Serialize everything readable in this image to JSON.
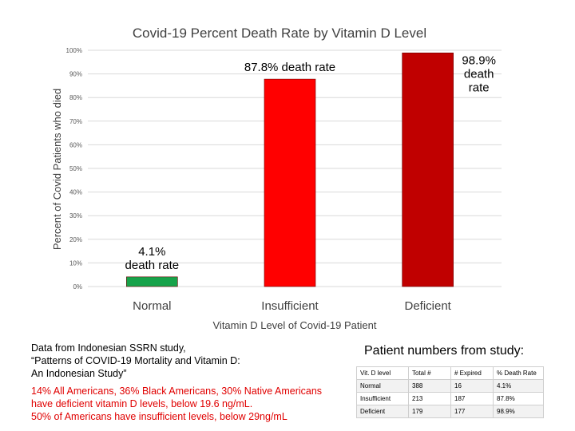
{
  "chart_data": {
    "type": "bar",
    "title": "Covid-19 Percent Death Rate by Vitamin D Level",
    "xlabel": "Vitamin D Level of Covid-19 Patient",
    "ylabel": "Percent of Covid Patients who died",
    "ylim": [
      0,
      100
    ],
    "yticks": [
      "0%",
      "10%",
      "20%",
      "30%",
      "40%",
      "50%",
      "60%",
      "70%",
      "80%",
      "90%",
      "100%"
    ],
    "grid": true,
    "categories": [
      "Normal",
      "Insufficient",
      "Deficient"
    ],
    "values": [
      4.1,
      87.8,
      98.9
    ],
    "colors": [
      "#17a34a",
      "#ff0000",
      "#c00000"
    ],
    "data_labels": [
      [
        "4.1%",
        "death rate"
      ],
      [
        "87.8% death rate"
      ],
      [
        "98.9%",
        "death",
        "rate"
      ]
    ]
  },
  "notes": {
    "line1": "Data from Indonesian SSRN study,",
    "line2": "“Patterns of COVID-19 Mortality and Vitamin D:",
    "line3": "An Indonesian Study”",
    "red1": "14% All Americans, 36% Black Americans, 30% Native Americans",
    "red2": "have deficient vitamin D levels, below 19.6 ng/mL.",
    "red3": "50% of Americans have insufficient levels, below 29ng/mL"
  },
  "table": {
    "title": "Patient numbers from study:",
    "headers": [
      "Vit. D level",
      "Total #",
      "# Expired",
      "% Death Rate"
    ],
    "rows": [
      [
        "Normal",
        "388",
        "16",
        "4.1%"
      ],
      [
        "Insufficient",
        "213",
        "187",
        "87.8%"
      ],
      [
        "Deficient",
        "179",
        "177",
        "98.9%"
      ]
    ]
  }
}
